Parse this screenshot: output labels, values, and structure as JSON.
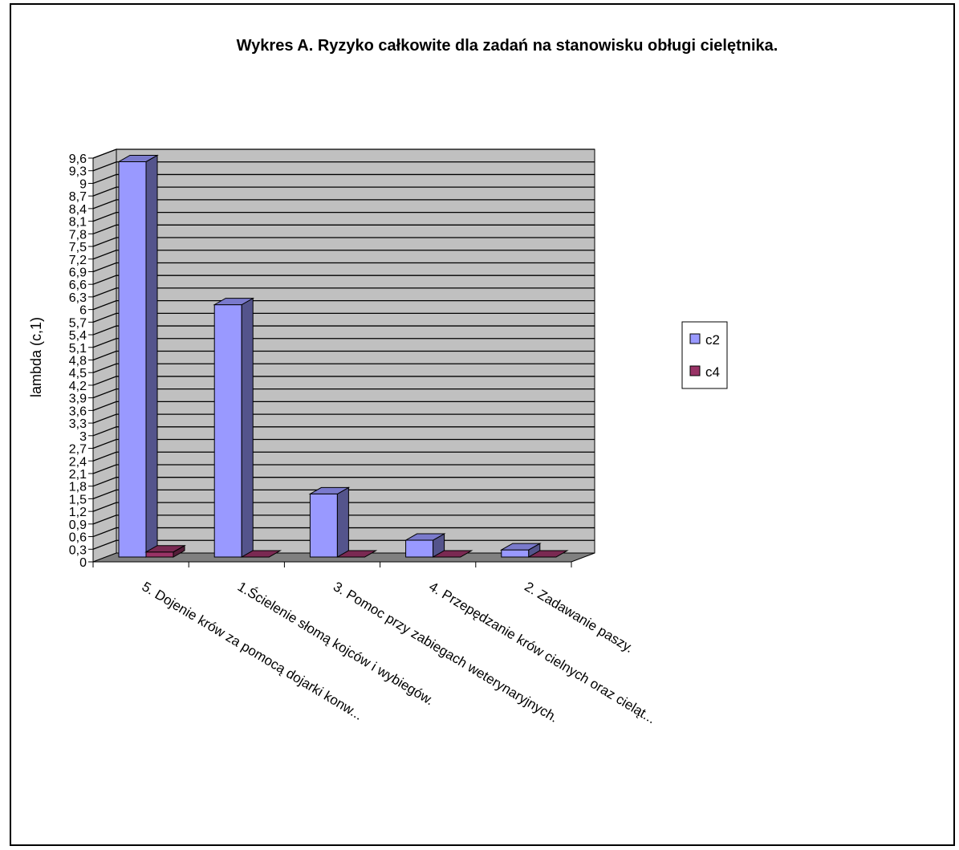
{
  "chart_data": {
    "type": "bar",
    "title": "Wykres A. Ryzyko całkowite dla zadań na stanowisku obługi cielętnika.",
    "ylabel": "lambda (c,1)",
    "xlabel": "",
    "categories": [
      "5. Dojenie krów za pomocą dojarki konw...",
      "1.Ścielenie słomą kojców i wybiegów.",
      "3. Pomoc przy zabiegach weterynaryjnych.",
      "4. Przepędzanie krów cielnych oraz cieląt...",
      "2. Zadawanie paszy."
    ],
    "series": [
      {
        "name": "c2",
        "values": [
          9.4,
          6.0,
          1.5,
          0.4,
          0.17
        ],
        "color": "#9999ff"
      },
      {
        "name": "c4",
        "values": [
          0.12,
          0.0,
          0.0,
          0.0,
          0.0
        ],
        "color": "#993366"
      }
    ],
    "yticks": [
      "0",
      "0,3",
      "0,6",
      "0,9",
      "1,2",
      "1,5",
      "1,8",
      "2,1",
      "2,4",
      "2,7",
      "3",
      "3,3",
      "3,6",
      "3,9",
      "4,2",
      "4,5",
      "4,8",
      "5,1",
      "5,4",
      "5,7",
      "6",
      "6,3",
      "6,6",
      "6,9",
      "7,2",
      "7,5",
      "7,8",
      "8,1",
      "8,4",
      "8,7",
      "9",
      "9,3",
      "9,6"
    ],
    "ylim": [
      0,
      9.6
    ],
    "grid": true,
    "legend_position": "right",
    "style": "3d-clustered-column",
    "colors": {
      "wall": "#c0c0c0",
      "floor": "#808080",
      "grid": "#000000"
    }
  }
}
